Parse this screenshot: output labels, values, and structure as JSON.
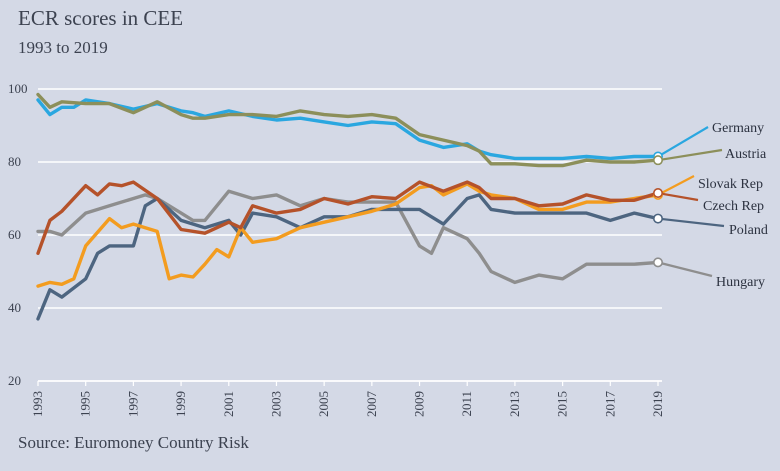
{
  "header": {
    "title": "ECR scores in CEE",
    "subtitle": "1993 to 2019"
  },
  "footer": {
    "source": "Source: Euromoney Country Risk"
  },
  "chart_data": {
    "type": "line",
    "title": "ECR scores in CEE",
    "subtitle": "1993 to 2019",
    "xlabel": "",
    "ylabel": "",
    "xlim": [
      1993,
      2019
    ],
    "ylim": [
      20,
      100
    ],
    "y_ticks": [
      20,
      40,
      60,
      80,
      100
    ],
    "x_ticks": [
      1993,
      1995,
      1997,
      1999,
      2001,
      2003,
      2005,
      2007,
      2009,
      2011,
      2013,
      2015,
      2017,
      2019
    ],
    "grid": "horizontal",
    "legend": "end-of-line labels",
    "series": [
      {
        "name": "Germany",
        "color": "#2aa7e0",
        "label_color": "#2aa7e0",
        "x": [
          1993,
          1993.5,
          1994,
          1994.5,
          1995,
          1996,
          1997,
          1998,
          1999,
          1999.5,
          2000,
          2001,
          2002,
          2003,
          2004,
          2005,
          2006,
          2007,
          2008,
          2009,
          2010,
          2011,
          2011.5,
          2012,
          2013,
          2014,
          2015,
          2016,
          2017,
          2018,
          2019
        ],
        "values": [
          97,
          93,
          95,
          95,
          97,
          96,
          94.5,
          96,
          94,
          93.5,
          92.5,
          94,
          92.5,
          91.5,
          92,
          91,
          90,
          91,
          90.5,
          86,
          84,
          85,
          83,
          82,
          81,
          81,
          81,
          81.5,
          81,
          81.5,
          81.5
        ]
      },
      {
        "name": "Austria",
        "color": "#8c8f5a",
        "label_color": "#2c3240",
        "x": [
          1993,
          1993.5,
          1994,
          1995,
          1996,
          1997,
          1998,
          1999,
          1999.5,
          2000,
          2001,
          2002,
          2003,
          2004,
          2005,
          2006,
          2007,
          2008,
          2009,
          2010,
          2011,
          2011.5,
          2012,
          2013,
          2014,
          2015,
          2016,
          2017,
          2018,
          2019
        ],
        "values": [
          98.5,
          95,
          96.5,
          96,
          96,
          93.5,
          96.5,
          93,
          92,
          92,
          93,
          93,
          92.5,
          94,
          93,
          92.5,
          93,
          92,
          87.5,
          86,
          84.5,
          83,
          79.5,
          79.5,
          79,
          79,
          80.5,
          80,
          80,
          80.5
        ]
      },
      {
        "name": "Slovak Rep",
        "color": "#f39c1f",
        "label_color": "#2c3240",
        "x": [
          1993,
          1993.5,
          1994,
          1994.5,
          1995,
          1996,
          1996.5,
          1997,
          1998,
          1998.5,
          1999,
          1999.5,
          2000,
          2000.5,
          2001,
          2001.5,
          2002,
          2003,
          2004,
          2005,
          2006,
          2007,
          2008,
          2009,
          2009.5,
          2010,
          2011,
          2011.5,
          2012,
          2013,
          2014,
          2015,
          2016,
          2017,
          2018,
          2019
        ],
        "values": [
          46,
          47,
          46.5,
          48,
          57,
          64.5,
          62,
          63,
          61,
          48,
          49,
          48.5,
          52,
          56,
          54,
          62,
          58,
          59,
          62,
          63.5,
          65,
          66.5,
          68.5,
          73,
          73.5,
          71,
          74,
          72,
          71,
          70,
          67,
          67,
          69,
          69,
          70,
          71
        ]
      },
      {
        "name": "Czech Rep",
        "color": "#b5522a",
        "label_color": "#2c3240",
        "x": [
          1993,
          1993.5,
          1994,
          1995,
          1995.5,
          1996,
          1996.5,
          1997,
          1998,
          1999,
          2000,
          2001,
          2001.5,
          2002,
          2003,
          2004,
          2005,
          2006,
          2007,
          2008,
          2009,
          2010,
          2011,
          2011.5,
          2012,
          2013,
          2014,
          2015,
          2016,
          2017,
          2018,
          2019
        ],
        "values": [
          55,
          64,
          66.5,
          73.5,
          71,
          74,
          73.5,
          74.5,
          70,
          61.5,
          60.5,
          63.5,
          62,
          68,
          66,
          67,
          70,
          68.5,
          70.5,
          70,
          74.5,
          72,
          74.5,
          73,
          70,
          70,
          68,
          68.5,
          71,
          69.5,
          69.5,
          71.5
        ]
      },
      {
        "name": "Poland",
        "color": "#4d6580",
        "label_color": "#2c3240",
        "x": [
          1993,
          1993.5,
          1994,
          1995,
          1995.5,
          1996,
          1997,
          1997.5,
          1998,
          1999,
          2000,
          2001,
          2001.5,
          2002,
          2003,
          2004,
          2005,
          2006,
          2007,
          2008,
          2009,
          2009.5,
          2010,
          2011,
          2011.5,
          2012,
          2013,
          2014,
          2015,
          2016,
          2017,
          2018,
          2019
        ],
        "values": [
          37,
          45,
          43,
          48,
          55,
          57,
          57,
          68,
          70,
          64,
          62,
          64,
          60,
          66,
          65,
          62,
          65,
          65,
          67,
          67,
          67,
          65,
          63,
          70,
          71,
          67,
          66,
          66,
          66,
          66,
          64,
          66,
          64.5
        ]
      },
      {
        "name": "Hungary",
        "color": "#8e8e8e",
        "label_color": "#2c3240",
        "x": [
          1993,
          1993.5,
          1994,
          1995,
          1996,
          1997,
          1997.5,
          1998,
          1999,
          1999.5,
          2000,
          2001,
          2002,
          2003,
          2004,
          2005,
          2006,
          2007,
          2008,
          2009,
          2009.5,
          2010,
          2011,
          2011.5,
          2012,
          2013,
          2014,
          2015,
          2016,
          2017,
          2018,
          2019
        ],
        "values": [
          61,
          61,
          60,
          66,
          68,
          70,
          71,
          70,
          66,
          64,
          64,
          72,
          70,
          71,
          68,
          70,
          69,
          69,
          69,
          57,
          55,
          62,
          59,
          55,
          50,
          47,
          49,
          48,
          52,
          52,
          52,
          52.5
        ]
      }
    ],
    "end_labels": [
      {
        "name": "Germany",
        "text": "Germany"
      },
      {
        "name": "Austria",
        "text": "Austria"
      },
      {
        "name": "Slovak Rep",
        "text": "Slovak Rep"
      },
      {
        "name": "Czech Rep",
        "text": "Czech Rep"
      },
      {
        "name": "Poland",
        "text": "Poland"
      },
      {
        "name": "Hungary",
        "text": "Hungary"
      }
    ]
  }
}
